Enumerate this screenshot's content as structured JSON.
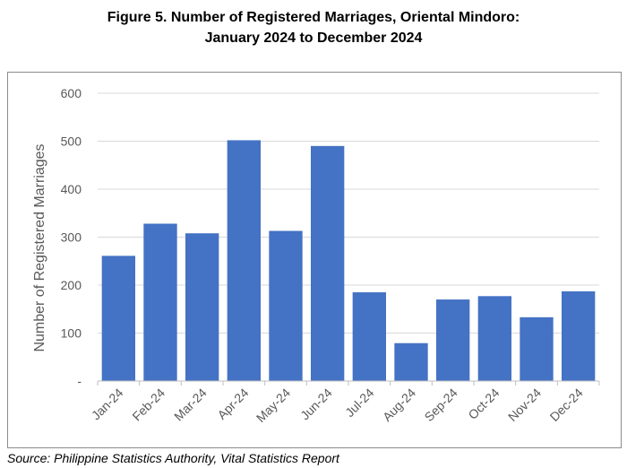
{
  "title_line1": "Figure 5. Number of Registered Marriages, Oriental Mindoro:",
  "title_line2": "January 2024 to December 2024",
  "source": "Source: Philippine Statistics Authority, Vital Statistics Report",
  "chart_data": {
    "type": "bar",
    "title": "Figure 5. Number of Registered Marriages, Oriental Mindoro: January 2024 to December 2024",
    "xlabel": "",
    "ylabel": "Number of Registered Marriages",
    "categories": [
      "Jan-24",
      "Feb-24",
      "Mar-24",
      "Apr-24",
      "May-24",
      "Jun-24",
      "Jul-24",
      "Aug-24",
      "Sep-24",
      "Oct-24",
      "Nov-24",
      "Dec-24"
    ],
    "values": [
      261,
      328,
      308,
      502,
      313,
      490,
      185,
      79,
      170,
      177,
      133,
      187
    ],
    "ylim": [
      0,
      600
    ],
    "yticks": [
      0,
      100,
      200,
      300,
      400,
      500,
      600
    ],
    "ytick_labels": [
      "-",
      "100",
      "200",
      "300",
      "400",
      "500",
      "600"
    ],
    "grid": true,
    "bar_color": "#4472c4",
    "grid_color": "#d9d9d9"
  }
}
